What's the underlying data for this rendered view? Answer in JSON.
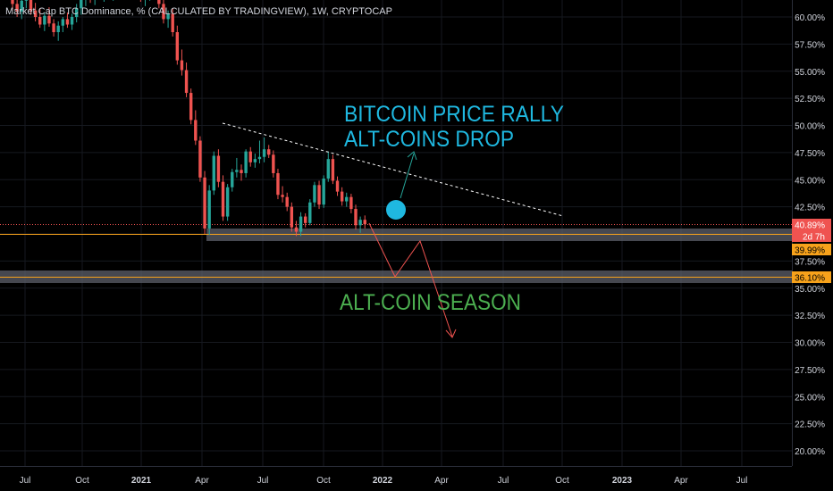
{
  "chart_data": {
    "type": "candlestick",
    "title": "Market Cap BTC Dominance, % (CALCULATED BY TRADINGVIEW), 1W, CRYPTOCAP",
    "y_unit": "%",
    "ylim": [
      18.8,
      61.5
    ],
    "y_ticks": [
      "60.00%",
      "57.50%",
      "55.00%",
      "52.50%",
      "50.00%",
      "47.50%",
      "45.00%",
      "42.50%",
      "40.00%",
      "37.50%",
      "35.00%",
      "32.50%",
      "30.00%",
      "27.50%",
      "25.00%",
      "22.50%",
      "20.00%"
    ],
    "x_ticks": [
      "Jul",
      "Oct",
      "2021",
      "Apr",
      "Jul",
      "Oct",
      "2022",
      "Apr",
      "Jul",
      "Oct",
      "2023",
      "Apr",
      "Jul"
    ],
    "price_labels": [
      {
        "text": "40.89%",
        "value": 40.89,
        "color": "#ef5350",
        "text_color": "#ffffff"
      },
      {
        "text": "2d 7h",
        "value": 40.25,
        "color": "#ef5350",
        "text_color": "#ffffff"
      },
      {
        "text": "39.99%",
        "value": 39.99,
        "color": "#f7a21b",
        "text_color": "#000000"
      },
      {
        "text": "36.10%",
        "value": 36.1,
        "color": "#f7a21b",
        "text_color": "#000000"
      }
    ],
    "candles": [
      {
        "o": 62.0,
        "h": 62.6,
        "l": 60.6,
        "c": 61.2
      },
      {
        "o": 61.2,
        "h": 62.0,
        "l": 60.0,
        "c": 60.5
      },
      {
        "o": 60.5,
        "h": 61.8,
        "l": 59.8,
        "c": 61.5
      },
      {
        "o": 61.5,
        "h": 62.3,
        "l": 60.8,
        "c": 62.0
      },
      {
        "o": 62.0,
        "h": 62.4,
        "l": 60.2,
        "c": 60.6
      },
      {
        "o": 60.6,
        "h": 61.3,
        "l": 59.6,
        "c": 60.0
      },
      {
        "o": 60.0,
        "h": 60.8,
        "l": 59.0,
        "c": 59.3
      },
      {
        "o": 59.3,
        "h": 60.4,
        "l": 58.7,
        "c": 60.1
      },
      {
        "o": 60.1,
        "h": 60.9,
        "l": 59.1,
        "c": 59.4
      },
      {
        "o": 59.4,
        "h": 59.8,
        "l": 58.2,
        "c": 58.6
      },
      {
        "o": 58.6,
        "h": 59.6,
        "l": 57.8,
        "c": 59.2
      },
      {
        "o": 59.2,
        "h": 60.0,
        "l": 58.6,
        "c": 59.8
      },
      {
        "o": 59.8,
        "h": 60.4,
        "l": 59.0,
        "c": 59.3
      },
      {
        "o": 59.3,
        "h": 60.3,
        "l": 58.8,
        "c": 60.0
      },
      {
        "o": 60.0,
        "h": 61.2,
        "l": 59.5,
        "c": 60.8
      },
      {
        "o": 60.8,
        "h": 62.0,
        "l": 60.2,
        "c": 61.6
      },
      {
        "o": 61.6,
        "h": 62.6,
        "l": 61.0,
        "c": 62.2
      },
      {
        "o": 62.2,
        "h": 62.8,
        "l": 61.3,
        "c": 61.8
      },
      {
        "o": 61.8,
        "h": 62.6,
        "l": 61.1,
        "c": 62.3
      },
      {
        "o": 62.3,
        "h": 62.9,
        "l": 61.6,
        "c": 62.0
      },
      {
        "o": 62.0,
        "h": 62.7,
        "l": 61.4,
        "c": 62.5
      },
      {
        "o": 62.5,
        "h": 62.9,
        "l": 61.8,
        "c": 62.1
      },
      {
        "o": 62.1,
        "h": 62.8,
        "l": 61.5,
        "c": 62.4
      },
      {
        "o": 62.4,
        "h": 62.9,
        "l": 61.9,
        "c": 62.2
      },
      {
        "o": 62.2,
        "h": 62.8,
        "l": 61.6,
        "c": 62.6
      },
      {
        "o": 62.6,
        "h": 62.9,
        "l": 62.0,
        "c": 62.3
      },
      {
        "o": 62.3,
        "h": 62.9,
        "l": 61.8,
        "c": 62.5
      },
      {
        "o": 62.5,
        "h": 62.9,
        "l": 61.9,
        "c": 62.2
      },
      {
        "o": 62.2,
        "h": 62.8,
        "l": 61.4,
        "c": 61.8
      },
      {
        "o": 61.8,
        "h": 62.5,
        "l": 61.0,
        "c": 62.1
      },
      {
        "o": 62.1,
        "h": 62.8,
        "l": 61.5,
        "c": 62.4
      },
      {
        "o": 62.4,
        "h": 62.9,
        "l": 61.8,
        "c": 62.0
      },
      {
        "o": 62.0,
        "h": 62.6,
        "l": 60.8,
        "c": 61.2
      },
      {
        "o": 61.2,
        "h": 61.6,
        "l": 59.4,
        "c": 59.8
      },
      {
        "o": 59.8,
        "h": 60.6,
        "l": 59.0,
        "c": 60.3
      },
      {
        "o": 60.3,
        "h": 60.8,
        "l": 58.2,
        "c": 58.6
      },
      {
        "o": 58.6,
        "h": 59.2,
        "l": 55.6,
        "c": 56.0
      },
      {
        "o": 56.0,
        "h": 57.0,
        "l": 54.6,
        "c": 55.1
      },
      {
        "o": 55.1,
        "h": 55.8,
        "l": 52.6,
        "c": 53.0
      },
      {
        "o": 53.0,
        "h": 53.4,
        "l": 50.1,
        "c": 50.5
      },
      {
        "o": 50.5,
        "h": 51.4,
        "l": 48.2,
        "c": 48.6
      },
      {
        "o": 48.6,
        "h": 49.0,
        "l": 44.8,
        "c": 45.2
      },
      {
        "o": 45.2,
        "h": 45.8,
        "l": 40.0,
        "c": 40.5
      },
      {
        "o": 40.5,
        "h": 44.5,
        "l": 39.9,
        "c": 44.0
      },
      {
        "o": 44.0,
        "h": 47.6,
        "l": 43.6,
        "c": 47.2
      },
      {
        "o": 47.2,
        "h": 47.8,
        "l": 44.3,
        "c": 44.8
      },
      {
        "o": 44.8,
        "h": 45.4,
        "l": 41.2,
        "c": 41.6
      },
      {
        "o": 41.6,
        "h": 44.6,
        "l": 41.2,
        "c": 44.3
      },
      {
        "o": 44.3,
        "h": 46.0,
        "l": 43.9,
        "c": 45.7
      },
      {
        "o": 45.7,
        "h": 47.0,
        "l": 45.2,
        "c": 45.9
      },
      {
        "o": 45.9,
        "h": 46.4,
        "l": 44.9,
        "c": 45.6
      },
      {
        "o": 45.6,
        "h": 47.8,
        "l": 45.2,
        "c": 47.6
      },
      {
        "o": 47.6,
        "h": 48.0,
        "l": 46.2,
        "c": 46.6
      },
      {
        "o": 46.6,
        "h": 47.4,
        "l": 46.1,
        "c": 46.9
      },
      {
        "o": 46.9,
        "h": 48.6,
        "l": 46.5,
        "c": 47.1
      },
      {
        "o": 47.1,
        "h": 48.9,
        "l": 46.6,
        "c": 47.8
      },
      {
        "o": 47.8,
        "h": 48.2,
        "l": 47.0,
        "c": 47.3
      },
      {
        "o": 47.3,
        "h": 47.7,
        "l": 45.2,
        "c": 45.6
      },
      {
        "o": 45.6,
        "h": 46.0,
        "l": 43.2,
        "c": 43.6
      },
      {
        "o": 43.6,
        "h": 44.4,
        "l": 42.9,
        "c": 43.4
      },
      {
        "o": 43.4,
        "h": 43.8,
        "l": 42.1,
        "c": 42.5
      },
      {
        "o": 42.5,
        "h": 42.9,
        "l": 40.2,
        "c": 40.6
      },
      {
        "o": 40.6,
        "h": 41.2,
        "l": 39.8,
        "c": 40.2
      },
      {
        "o": 40.2,
        "h": 42.0,
        "l": 39.8,
        "c": 41.6
      },
      {
        "o": 41.6,
        "h": 41.9,
        "l": 40.6,
        "c": 41.0
      },
      {
        "o": 41.0,
        "h": 43.2,
        "l": 40.8,
        "c": 42.9
      },
      {
        "o": 42.9,
        "h": 44.8,
        "l": 42.5,
        "c": 44.5
      },
      {
        "o": 44.5,
        "h": 44.9,
        "l": 42.3,
        "c": 42.7
      },
      {
        "o": 42.7,
        "h": 45.4,
        "l": 42.4,
        "c": 45.1
      },
      {
        "o": 45.1,
        "h": 47.6,
        "l": 44.8,
        "c": 46.9
      },
      {
        "o": 46.9,
        "h": 47.3,
        "l": 44.6,
        "c": 44.9
      },
      {
        "o": 44.9,
        "h": 45.3,
        "l": 43.5,
        "c": 43.9
      },
      {
        "o": 43.9,
        "h": 44.3,
        "l": 42.6,
        "c": 43.0
      },
      {
        "o": 43.0,
        "h": 43.8,
        "l": 42.5,
        "c": 43.4
      },
      {
        "o": 43.4,
        "h": 43.7,
        "l": 41.9,
        "c": 42.3
      },
      {
        "o": 42.3,
        "h": 42.7,
        "l": 40.4,
        "c": 40.8
      },
      {
        "o": 40.8,
        "h": 41.6,
        "l": 40.1,
        "c": 41.3
      },
      {
        "o": 41.3,
        "h": 41.7,
        "l": 40.5,
        "c": 40.89
      }
    ],
    "bear_color": "#ef5350",
    "bull_color": "#26a69a",
    "annotations": {
      "rally_line1": "BITCOIN PRICE RALLY",
      "rally_line2": "ALT-COINS DROP",
      "season": "ALT-COIN SEASON",
      "rally_color": "#1fb8e0",
      "season_color": "#4caf50"
    }
  }
}
